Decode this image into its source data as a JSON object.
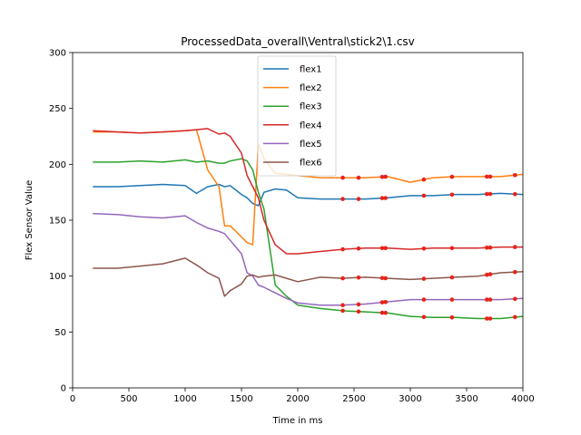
{
  "chart_data": {
    "type": "line",
    "title": "ProcessedData_overall\\Ventral\\stick2\\1.csv",
    "xlabel": "Time in ms",
    "ylabel": "Flex Sensor Value",
    "xlim": [
      0,
      4000
    ],
    "ylim": [
      0,
      300
    ],
    "xticks": [
      "0",
      "500",
      "1000",
      "1500",
      "2000",
      "2500",
      "3000",
      "3500",
      "4000"
    ],
    "yticks": [
      "0",
      "50",
      "100",
      "150",
      "200",
      "250",
      "300"
    ],
    "grid": false,
    "legend_position": "top-center",
    "x": [
      180,
      400,
      600,
      800,
      1000,
      1100,
      1200,
      1300,
      1350,
      1400,
      1500,
      1550,
      1600,
      1650,
      1700,
      1800,
      1900,
      2000,
      2200,
      2400,
      2600,
      2800,
      3000,
      3200,
      3400,
      3600,
      3800,
      4000
    ],
    "series": [
      {
        "name": "flex1",
        "color": "#1f77b4",
        "values": [
          180,
          180,
          181,
          182,
          181,
          174,
          180,
          182,
          180,
          181,
          173,
          170,
          165,
          163,
          175,
          178,
          177,
          170,
          169,
          169,
          169,
          170,
          172,
          172,
          173,
          173,
          174,
          173
        ]
      },
      {
        "name": "flex2",
        "color": "#ff7f0e",
        "values": [
          229,
          229,
          228,
          229,
          230,
          231,
          195,
          180,
          145,
          145,
          135,
          130,
          128,
          218,
          205,
          192,
          191,
          190,
          188,
          188,
          188,
          189,
          184,
          188,
          189,
          189,
          189,
          191
        ]
      },
      {
        "name": "flex3",
        "color": "#2ca02c",
        "values": [
          202,
          202,
          203,
          202,
          204,
          202,
          203,
          201,
          201,
          203,
          205,
          203,
          195,
          175,
          160,
          92,
          82,
          74,
          71,
          69,
          68,
          67,
          64,
          63,
          63,
          62,
          62,
          64
        ]
      },
      {
        "name": "flex4",
        "color": "#d62728",
        "values": [
          230,
          229,
          228,
          229,
          230,
          231,
          232,
          227,
          228,
          225,
          210,
          190,
          180,
          170,
          150,
          128,
          120,
          120,
          122,
          124,
          125,
          125,
          124,
          125,
          125,
          125,
          126,
          126
        ]
      },
      {
        "name": "flex5",
        "color": "#9467bd",
        "values": [
          156,
          155,
          153,
          152,
          154,
          148,
          143,
          140,
          138,
          132,
          120,
          103,
          100,
          92,
          90,
          85,
          80,
          76,
          74,
          74,
          75,
          77,
          79,
          79,
          79,
          79,
          79,
          80
        ]
      },
      {
        "name": "flex6",
        "color": "#8c564b",
        "values": [
          107,
          107,
          109,
          111,
          116,
          110,
          103,
          98,
          82,
          87,
          93,
          100,
          101,
          99,
          100,
          101,
          98,
          95,
          99,
          98,
          99,
          98,
          97,
          98,
          99,
          100,
          103,
          104
        ]
      }
    ],
    "markers": {
      "color": "#e8231a",
      "x": [
        2400,
        2540,
        2750,
        2780,
        3120,
        3370,
        3680,
        3710,
        3930
      ]
    }
  }
}
